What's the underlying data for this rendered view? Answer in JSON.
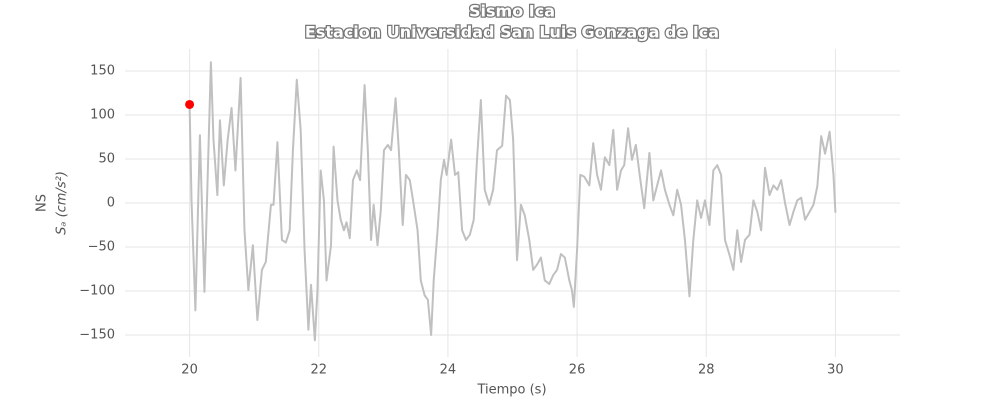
{
  "chart_data": {
    "type": "line",
    "title": "Sismo Ica",
    "subtitle": "Estacion Universidad San Luis Gonzaga de Ica",
    "xlabel": "Tiempo (s)",
    "ylabel": [
      "NS",
      "Sₐ (cm/s²)"
    ],
    "xlim": [
      19,
      31
    ],
    "ylim": [
      -175,
      175
    ],
    "xticks": [
      20,
      22,
      24,
      26,
      28,
      30
    ],
    "yticks": [
      {
        "value": -150,
        "label": "−150"
      },
      {
        "value": -100,
        "label": "−100"
      },
      {
        "value": -50,
        "label": "−50"
      },
      0,
      50,
      100,
      150
    ],
    "grid": true,
    "series": [
      {
        "color": "#c0c0c0",
        "marker": false,
        "x": [
          20.0,
          20.03,
          20.09,
          20.16,
          20.23,
          20.33,
          20.37,
          20.43,
          20.47,
          20.53,
          20.59,
          20.65,
          20.71,
          20.79,
          20.85,
          20.91,
          20.98,
          21.05,
          21.12,
          21.18,
          21.26,
          21.3,
          21.36,
          21.43,
          21.49,
          21.55,
          21.6,
          21.66,
          21.72,
          21.78,
          21.84,
          21.88,
          21.94,
          21.98,
          22.03,
          22.08,
          22.12,
          22.19,
          22.23,
          22.29,
          22.34,
          22.39,
          22.43,
          22.48,
          22.53,
          22.59,
          22.64,
          22.71,
          22.76,
          22.81,
          22.85,
          22.91,
          22.96,
          23.01,
          23.07,
          23.12,
          23.19,
          23.24,
          23.3,
          23.35,
          23.41,
          23.46,
          23.53,
          23.58,
          23.64,
          23.69,
          23.74,
          23.78,
          23.84,
          23.89,
          23.94,
          23.98,
          24.05,
          24.11,
          24.16,
          24.22,
          24.28,
          24.34,
          24.4,
          24.45,
          24.51,
          24.57,
          24.64,
          24.7,
          24.76,
          24.84,
          24.9,
          24.96,
          25.01,
          25.07,
          25.13,
          25.19,
          25.26,
          25.32,
          25.38,
          25.44,
          25.5,
          25.57,
          25.63,
          25.69,
          25.75,
          25.81,
          25.88,
          25.92,
          25.95,
          26.0,
          26.05,
          26.11,
          26.19,
          26.25,
          26.31,
          26.37,
          26.43,
          26.5,
          26.56,
          26.62,
          26.68,
          26.73,
          26.79,
          26.85,
          26.91,
          26.98,
          27.04,
          27.12,
          27.18,
          27.24,
          27.3,
          27.36,
          27.43,
          27.49,
          27.55,
          27.61,
          27.67,
          27.74,
          27.8,
          27.86,
          27.92,
          27.98,
          28.05,
          28.11,
          28.17,
          28.23,
          28.29,
          28.36,
          28.42,
          28.48,
          28.54,
          28.6,
          28.67,
          28.73,
          28.79,
          28.85,
          28.91,
          28.98,
          29.04,
          29.1,
          29.16,
          29.22,
          29.29,
          29.35,
          29.41,
          29.47,
          29.53,
          29.6,
          29.66,
          29.72,
          29.78,
          29.84,
          29.91,
          29.97,
          30.0
        ],
        "values": [
          112,
          3,
          -122,
          77,
          -101,
          160,
          72,
          9,
          94,
          20,
          72,
          108,
          37,
          142,
          -31,
          -99,
          -48,
          -133,
          -76,
          -67,
          -2,
          -2,
          69,
          -42,
          -45,
          -31,
          60,
          140,
          83,
          -53,
          -144,
          -93,
          -156,
          -99,
          37,
          3,
          -88,
          -48,
          64,
          3,
          -19,
          -31,
          -22,
          -40,
          26,
          37,
          26,
          134,
          60,
          -42,
          -2,
          -48,
          -9,
          60,
          66,
          60,
          119,
          60,
          -25,
          32,
          26,
          3,
          -31,
          -88,
          -105,
          -110,
          -150,
          -88,
          -31,
          26,
          49,
          32,
          72,
          32,
          35,
          -31,
          -42,
          -36,
          -19,
          49,
          117,
          15,
          -2,
          15,
          60,
          65,
          122,
          117,
          72,
          -65,
          -2,
          -14,
          -42,
          -76,
          -70,
          -62,
          -88,
          -92,
          -82,
          -76,
          -58,
          -62,
          -88,
          -99,
          -118,
          -53,
          32,
          30,
          20,
          68,
          32,
          15,
          52,
          43,
          83,
          15,
          37,
          43,
          85,
          49,
          66,
          26,
          -6,
          57,
          3,
          20,
          37,
          15,
          -2,
          -14,
          15,
          -2,
          -42,
          -106,
          -42,
          3,
          -17,
          3,
          -25,
          37,
          43,
          32,
          -42,
          -59,
          -76,
          -31,
          -67,
          -42,
          -36,
          3,
          -10,
          -31,
          40,
          9,
          20,
          15,
          26,
          0,
          -25,
          -10,
          3,
          6,
          -19,
          -10,
          -2,
          19,
          76,
          56,
          81,
          32,
          -11
        ]
      },
      {
        "color": "#ff0000",
        "marker": true,
        "x": [
          20.0
        ],
        "values": [
          112
        ]
      }
    ]
  }
}
